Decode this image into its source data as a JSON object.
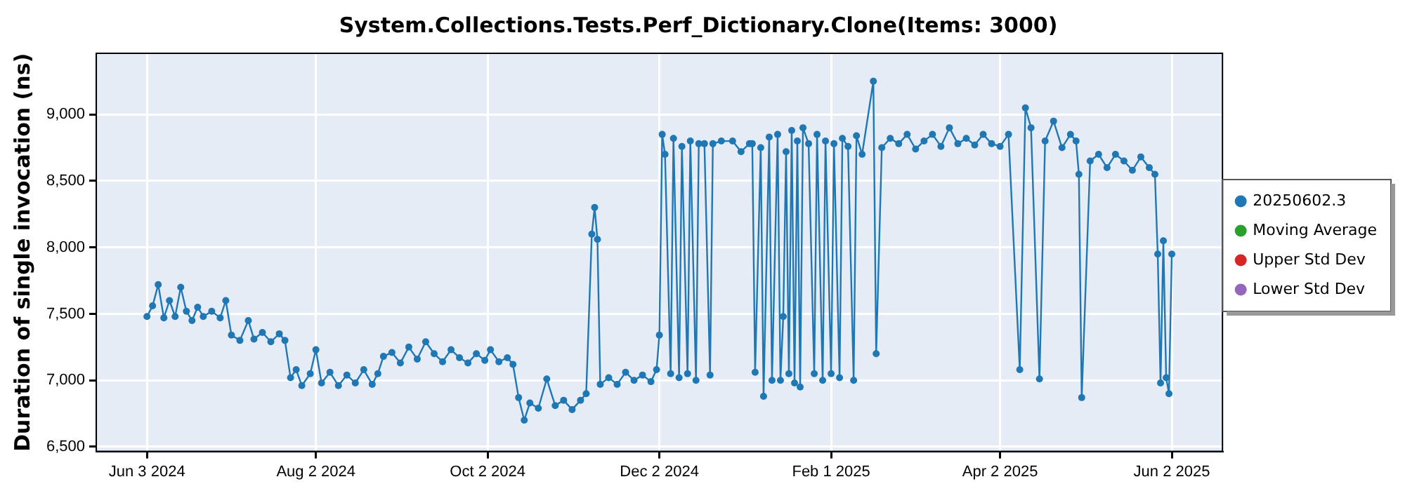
{
  "chart_data": {
    "type": "line",
    "title": "System.Collections.Tests.Perf_Dictionary.Clone(Items: 3000)",
    "ylabel": "Duration of single invocation (ns)",
    "xlim": [
      "2024-05-16",
      "2025-06-20"
    ],
    "xticks": [
      {
        "value": "2024-06-03",
        "label": "Jun 3 2024"
      },
      {
        "value": "2024-08-02",
        "label": "Aug 2 2024"
      },
      {
        "value": "2024-10-02",
        "label": "Oct 2 2024"
      },
      {
        "value": "2024-12-02",
        "label": "Dec 2 2024"
      },
      {
        "value": "2025-02-01",
        "label": "Feb 1 2025"
      },
      {
        "value": "2025-04-02",
        "label": "Apr 2 2025"
      },
      {
        "value": "2025-06-02",
        "label": "Jun 2 2025"
      }
    ],
    "ylim": [
      6465,
      9460
    ],
    "yticks": [
      {
        "value": 6500,
        "label": "6,500"
      },
      {
        "value": 7000,
        "label": "7,000"
      },
      {
        "value": 7500,
        "label": "7,500"
      },
      {
        "value": 8000,
        "label": "8,000"
      },
      {
        "value": 8500,
        "label": "8,500"
      },
      {
        "value": 9000,
        "label": "9,000"
      }
    ],
    "grid": true,
    "legend": "right",
    "marker": "circle",
    "line_style": "solid",
    "series": [
      {
        "name": "20250602.3",
        "color": "#1f77b4",
        "x": [
          "2024-06-03",
          "2024-06-05",
          "2024-06-07",
          "2024-06-09",
          "2024-06-11",
          "2024-06-13",
          "2024-06-15",
          "2024-06-17",
          "2024-06-19",
          "2024-06-21",
          "2024-06-23",
          "2024-06-26",
          "2024-06-29",
          "2024-07-01",
          "2024-07-03",
          "2024-07-06",
          "2024-07-09",
          "2024-07-11",
          "2024-07-14",
          "2024-07-17",
          "2024-07-20",
          "2024-07-22",
          "2024-07-24",
          "2024-07-26",
          "2024-07-28",
          "2024-07-31",
          "2024-08-02",
          "2024-08-04",
          "2024-08-07",
          "2024-08-10",
          "2024-08-13",
          "2024-08-16",
          "2024-08-19",
          "2024-08-22",
          "2024-08-24",
          "2024-08-26",
          "2024-08-29",
          "2024-09-01",
          "2024-09-04",
          "2024-09-07",
          "2024-09-10",
          "2024-09-13",
          "2024-09-16",
          "2024-09-19",
          "2024-09-22",
          "2024-09-25",
          "2024-09-28",
          "2024-10-01",
          "2024-10-03",
          "2024-10-06",
          "2024-10-09",
          "2024-10-11",
          "2024-10-13",
          "2024-10-15",
          "2024-10-17",
          "2024-10-20",
          "2024-10-23",
          "2024-10-26",
          "2024-10-29",
          "2024-11-01",
          "2024-11-04",
          "2024-11-06",
          "2024-11-08",
          "2024-11-09",
          "2024-11-10",
          "2024-11-11",
          "2024-11-14",
          "2024-11-17",
          "2024-11-20",
          "2024-11-23",
          "2024-11-26",
          "2024-11-29",
          "2024-12-01",
          "2024-12-02",
          "2024-12-03",
          "2024-12-04",
          "2024-12-06",
          "2024-12-07",
          "2024-12-09",
          "2024-12-10",
          "2024-12-12",
          "2024-12-13",
          "2024-12-15",
          "2024-12-16",
          "2024-12-18",
          "2024-12-20",
          "2024-12-21",
          "2024-12-24",
          "2024-12-28",
          "2024-12-31",
          "2025-01-03",
          "2025-01-04",
          "2025-01-05",
          "2025-01-07",
          "2025-01-08",
          "2025-01-10",
          "2025-01-11",
          "2025-01-13",
          "2025-01-14",
          "2025-01-15",
          "2025-01-16",
          "2025-01-17",
          "2025-01-18",
          "2025-01-19",
          "2025-01-20",
          "2025-01-21",
          "2025-01-22",
          "2025-01-24",
          "2025-01-26",
          "2025-01-27",
          "2025-01-29",
          "2025-01-30",
          "2025-02-01",
          "2025-02-02",
          "2025-02-04",
          "2025-02-05",
          "2025-02-07",
          "2025-02-09",
          "2025-02-10",
          "2025-02-12",
          "2025-02-16",
          "2025-02-17",
          "2025-02-19",
          "2025-02-22",
          "2025-02-25",
          "2025-02-28",
          "2025-03-03",
          "2025-03-06",
          "2025-03-09",
          "2025-03-12",
          "2025-03-15",
          "2025-03-18",
          "2025-03-21",
          "2025-03-24",
          "2025-03-27",
          "2025-03-30",
          "2025-04-02",
          "2025-04-05",
          "2025-04-09",
          "2025-04-11",
          "2025-04-13",
          "2025-04-16",
          "2025-04-18",
          "2025-04-21",
          "2025-04-24",
          "2025-04-27",
          "2025-04-29",
          "2025-04-30",
          "2025-05-01",
          "2025-05-04",
          "2025-05-07",
          "2025-05-10",
          "2025-05-13",
          "2025-05-16",
          "2025-05-19",
          "2025-05-22",
          "2025-05-25",
          "2025-05-27",
          "2025-05-28",
          "2025-05-29",
          "2025-05-30",
          "2025-05-31",
          "2025-06-01",
          "2025-06-02"
        ],
        "values": [
          7480,
          7560,
          7720,
          7470,
          7600,
          7480,
          7700,
          7520,
          7450,
          7550,
          7480,
          7520,
          7470,
          7600,
          7340,
          7300,
          7450,
          7310,
          7360,
          7290,
          7350,
          7300,
          7020,
          7080,
          6960,
          7050,
          7230,
          6980,
          7060,
          6960,
          7040,
          6980,
          7080,
          6970,
          7050,
          7180,
          7210,
          7130,
          7250,
          7160,
          7290,
          7200,
          7140,
          7230,
          7170,
          7130,
          7200,
          7150,
          7230,
          7140,
          7170,
          7120,
          6870,
          6700,
          6830,
          6790,
          7010,
          6810,
          6850,
          6780,
          6850,
          6900,
          8100,
          8300,
          8060,
          6970,
          7020,
          6970,
          7060,
          7000,
          7040,
          6990,
          7080,
          7340,
          8850,
          8700,
          7050,
          8820,
          7020,
          8760,
          7050,
          8800,
          7000,
          8780,
          8780,
          7040,
          8780,
          8800,
          8800,
          8720,
          8780,
          8780,
          7060,
          8750,
          6880,
          8830,
          7000,
          8850,
          7000,
          7480,
          8720,
          7050,
          8880,
          6980,
          8800,
          6950,
          8900,
          8780,
          7050,
          8850,
          7000,
          8800,
          7050,
          8780,
          7020,
          8820,
          8760,
          7000,
          8840,
          8700,
          9250,
          7200,
          8750,
          8820,
          8780,
          8850,
          8740,
          8800,
          8850,
          8760,
          8900,
          8780,
          8820,
          8770,
          8850,
          8780,
          8760,
          8850,
          7080,
          9050,
          8900,
          7010,
          8800,
          8950,
          8750,
          8850,
          8800,
          8550,
          6870,
          8650,
          8700,
          8600,
          8700,
          8650,
          8580,
          8680,
          8600,
          8550,
          7950,
          6980,
          8050,
          7020,
          6900,
          7950
        ]
      },
      {
        "name": "Moving Average",
        "color": "#2ca02c"
      },
      {
        "name": "Upper Std Dev",
        "color": "#d62728"
      },
      {
        "name": "Lower Std Dev",
        "color": "#9467bd"
      }
    ]
  }
}
